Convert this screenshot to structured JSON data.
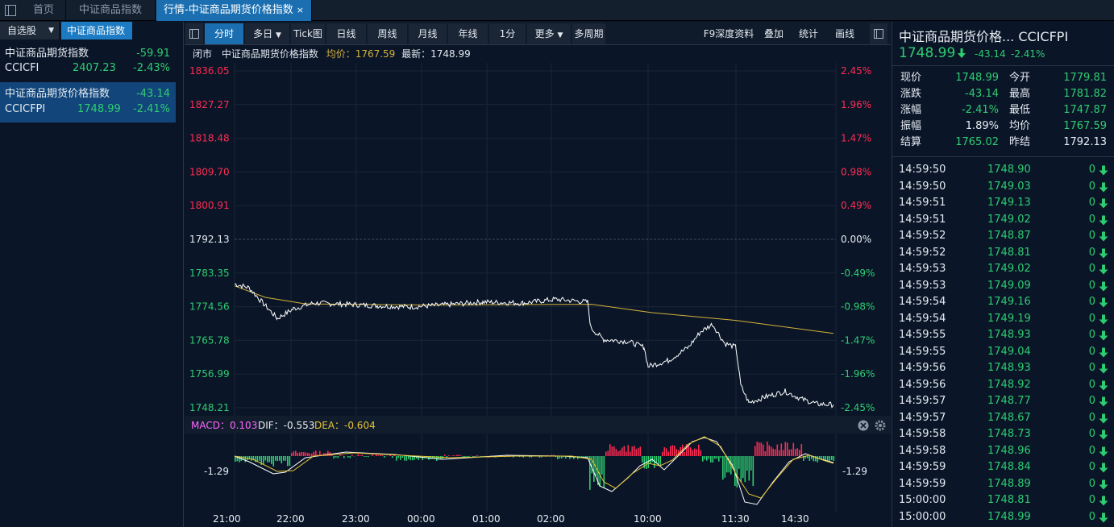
{
  "tabs": [
    "首页",
    "中证商品指数",
    "行情-中证商品期货价格指数"
  ],
  "tab_close": "×",
  "left_panel": {
    "btn_watchlist": "自选股",
    "btn_index": "中证商品指数",
    "items": [
      {
        "name": "中证商品期货指数",
        "change": "-59.91",
        "code": "CCICFI",
        "price": "2407.23",
        "pct": "-2.43%"
      },
      {
        "name": "中证商品期货价格指数",
        "change": "-43.14",
        "code": "CCICFPI",
        "price": "1748.99",
        "pct": "-2.41%"
      }
    ]
  },
  "toolbar": {
    "buttons": [
      "分时",
      "多日",
      "Tick图",
      "日线",
      "周线",
      "月线",
      "年线",
      "1分",
      "更多",
      "多周期"
    ],
    "right_buttons": [
      "F9深度资料",
      "叠加",
      "统计",
      "画线"
    ]
  },
  "infobar": {
    "status": "闭市",
    "name": "中证商品期货价格指数",
    "avg": "均价：1767.59",
    "last": "最新：1748.99"
  },
  "y_labels_left": [
    "1836.05",
    "1827.27",
    "1818.48",
    "1809.70",
    "1800.91",
    "1792.13",
    "1783.35",
    "1774.56",
    "1765.78",
    "1756.99",
    "1748.21"
  ],
  "y_labels_right": [
    "2.45%",
    "1.96%",
    "1.47%",
    "0.98%",
    "0.49%",
    "0.00%",
    "-0.49%",
    "-0.98%",
    "-1.47%",
    "-1.96%",
    "-2.45%"
  ],
  "macd": {
    "macd": "MACD：0.103",
    "dif": "DIF：-0.553",
    "dea": "DEA：-0.604",
    "level_left": "-1.29",
    "level_right": "-1.29"
  },
  "x_labels": [
    "21:00",
    "22:00",
    "23:00",
    "00:00",
    "01:00",
    "02:00",
    "10:00",
    "11:30",
    "14:30"
  ],
  "colors": {
    "up": "#ff2b52",
    "down": "#2ecc71",
    "price_line": "#ffffff",
    "avg_line": "#d4b13a",
    "dea_line": "#e6c233",
    "accent": "#1b6fb1"
  },
  "quote": {
    "title": "中证商品期货价格...",
    "code": "CCICFPI",
    "price": "1748.99",
    "change": "-43.14",
    "pct": "-2.41%",
    "rows": [
      {
        "l1": "现价",
        "v1": "1748.99",
        "l2": "今开",
        "v2": "1779.81"
      },
      {
        "l1": "涨跌",
        "v1": "-43.14",
        "l2": "最高",
        "v2": "1781.82"
      },
      {
        "l1": "涨幅",
        "v1": "-2.41%",
        "l2": "最低",
        "v2": "1747.87"
      },
      {
        "l1": "振幅",
        "v1": "1.89%",
        "l2": "均价",
        "v2": "1767.59"
      },
      {
        "l1": "结算",
        "v1": "1765.02",
        "l2": "昨结",
        "v2": "1792.13"
      }
    ]
  },
  "ticks": [
    {
      "time": "14:59:50",
      "price": "1748.90",
      "vol": "0"
    },
    {
      "time": "14:59:50",
      "price": "1749.03",
      "vol": "0"
    },
    {
      "time": "14:59:51",
      "price": "1749.13",
      "vol": "0"
    },
    {
      "time": "14:59:51",
      "price": "1749.02",
      "vol": "0"
    },
    {
      "time": "14:59:52",
      "price": "1748.87",
      "vol": "0"
    },
    {
      "time": "14:59:52",
      "price": "1748.81",
      "vol": "0"
    },
    {
      "time": "14:59:53",
      "price": "1749.02",
      "vol": "0"
    },
    {
      "time": "14:59:53",
      "price": "1749.09",
      "vol": "0"
    },
    {
      "time": "14:59:54",
      "price": "1749.16",
      "vol": "0"
    },
    {
      "time": "14:59:54",
      "price": "1749.19",
      "vol": "0"
    },
    {
      "time": "14:59:55",
      "price": "1748.93",
      "vol": "0"
    },
    {
      "time": "14:59:55",
      "price": "1749.04",
      "vol": "0"
    },
    {
      "time": "14:59:56",
      "price": "1748.93",
      "vol": "0"
    },
    {
      "time": "14:59:56",
      "price": "1748.92",
      "vol": "0"
    },
    {
      "time": "14:59:57",
      "price": "1748.77",
      "vol": "0"
    },
    {
      "time": "14:59:57",
      "price": "1748.67",
      "vol": "0"
    },
    {
      "time": "14:59:58",
      "price": "1748.73",
      "vol": "0"
    },
    {
      "time": "14:59:58",
      "price": "1748.96",
      "vol": "0"
    },
    {
      "time": "14:59:59",
      "price": "1748.84",
      "vol": "0"
    },
    {
      "time": "14:59:59",
      "price": "1748.89",
      "vol": "0"
    },
    {
      "time": "15:00:00",
      "price": "1748.81",
      "vol": "0"
    },
    {
      "time": "15:00:00",
      "price": "1748.99",
      "vol": "0"
    }
  ]
}
